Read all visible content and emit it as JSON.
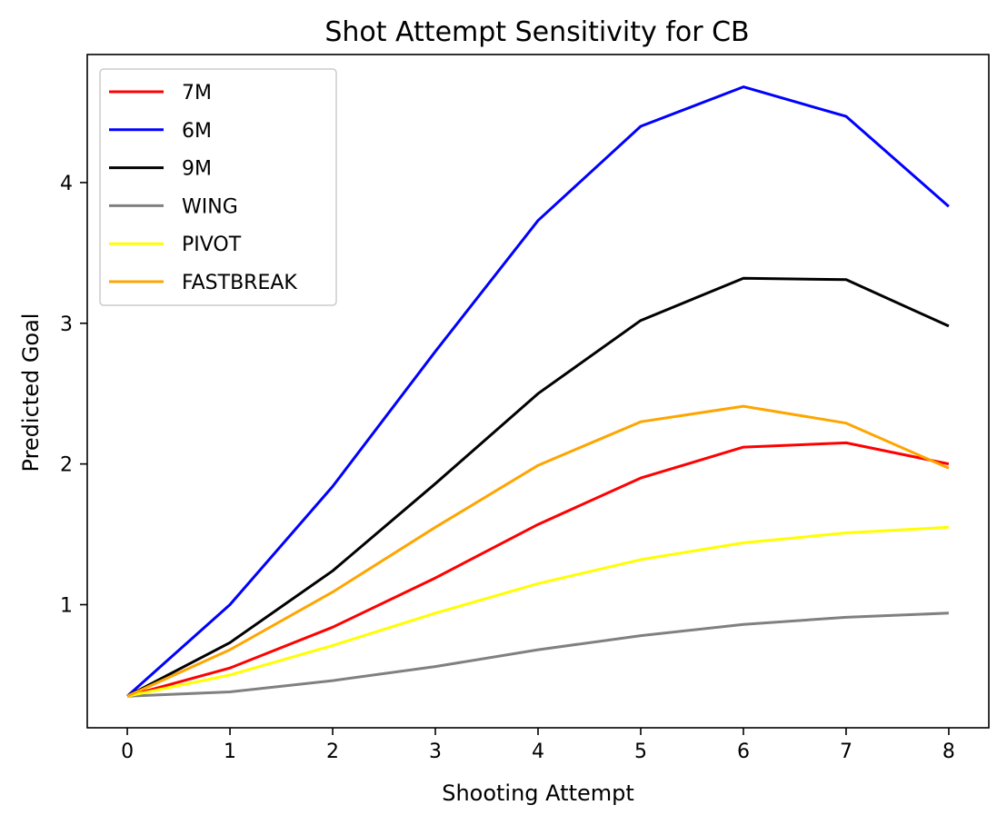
{
  "chart_data": {
    "type": "line",
    "title": "Shot Attempt Sensitivity for CB",
    "xlabel": "Shooting Attempt",
    "ylabel": "Predicted Goal",
    "x": [
      0,
      1,
      2,
      3,
      4,
      5,
      6,
      7,
      8
    ],
    "xlim": [
      -0.39,
      8.39
    ],
    "ylim": [
      0.125,
      4.91
    ],
    "xticks": [
      "0",
      "1",
      "2",
      "3",
      "4",
      "5",
      "6",
      "7",
      "8"
    ],
    "yticks": [
      "1",
      "2",
      "3",
      "4"
    ],
    "grid": false,
    "legend_position": "top-left",
    "series": [
      {
        "name": "7M",
        "color": "#ff0000",
        "values": [
          0.35,
          0.55,
          0.84,
          1.19,
          1.57,
          1.9,
          2.12,
          2.15,
          2.0
        ]
      },
      {
        "name": "6M",
        "color": "#0000ff",
        "values": [
          0.35,
          1.0,
          1.84,
          2.8,
          3.73,
          4.4,
          4.68,
          4.47,
          3.83
        ]
      },
      {
        "name": "9M",
        "color": "#000000",
        "values": [
          0.35,
          0.73,
          1.24,
          1.86,
          2.5,
          3.02,
          3.32,
          3.31,
          2.98
        ]
      },
      {
        "name": "WING",
        "color": "#808080",
        "values": [
          0.35,
          0.38,
          0.46,
          0.56,
          0.68,
          0.78,
          0.86,
          0.91,
          0.94
        ]
      },
      {
        "name": "PIVOT",
        "color": "#ffff00",
        "values": [
          0.35,
          0.5,
          0.71,
          0.94,
          1.15,
          1.32,
          1.44,
          1.51,
          1.55
        ]
      },
      {
        "name": "FASTBREAK",
        "color": "#ffa500",
        "values": [
          0.35,
          0.68,
          1.09,
          1.55,
          1.99,
          2.3,
          2.41,
          2.29,
          1.97
        ]
      }
    ]
  }
}
